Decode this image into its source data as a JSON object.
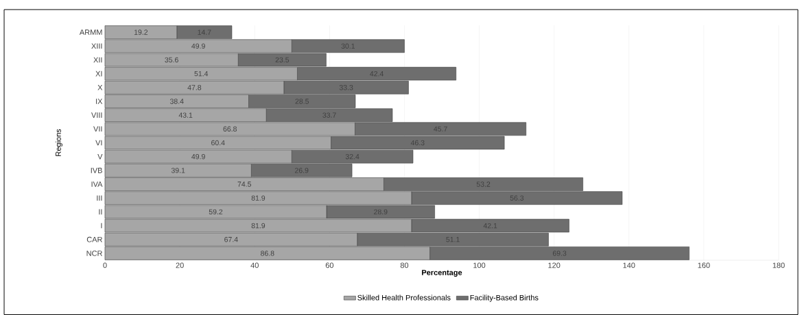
{
  "chart_data": {
    "type": "bar",
    "orientation": "horizontal",
    "stacked": true,
    "categories": [
      "ARMM",
      "XIII",
      "XII",
      "XI",
      "X",
      "IX",
      "VIII",
      "VII",
      "VI",
      "V",
      "IVB",
      "IVA",
      "III",
      "II",
      "I",
      "CAR",
      "NCR"
    ],
    "series": [
      {
        "name": "Skilled Health Professionals",
        "color": "#a6a6a6",
        "values": [
          19.2,
          49.9,
          35.6,
          51.4,
          47.8,
          38.4,
          43.1,
          66.8,
          60.4,
          49.9,
          39.1,
          74.5,
          81.9,
          59.2,
          81.9,
          67.4,
          86.8
        ]
      },
      {
        "name": "Facility-Based Births",
        "color": "#6e6e6e",
        "values": [
          14.7,
          30.1,
          23.5,
          42.4,
          33.3,
          28.5,
          33.7,
          45.7,
          46.3,
          32.4,
          26.9,
          53.2,
          56.3,
          28.9,
          42.1,
          51.1,
          69.3
        ]
      }
    ],
    "xlabel": "Percentage",
    "ylabel": "Regions",
    "xlim": [
      0,
      180
    ],
    "xticks": [
      0,
      20,
      40,
      60,
      80,
      100,
      120,
      140,
      160,
      180
    ],
    "grid": "x",
    "legend": "bottom",
    "data_labels": true
  }
}
